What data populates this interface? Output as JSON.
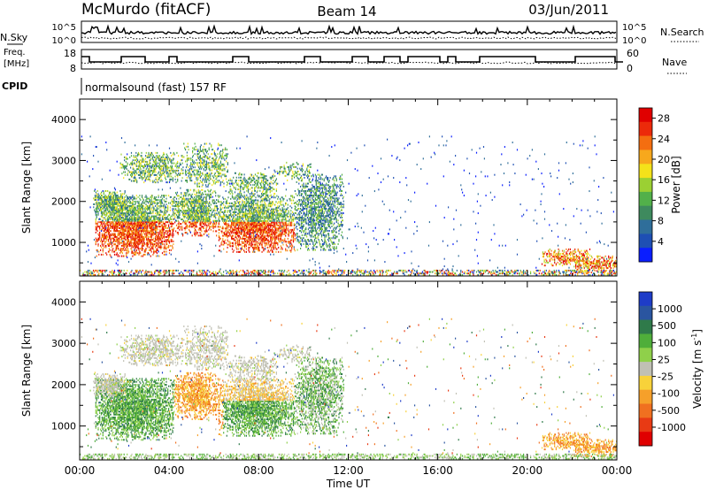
{
  "header": {
    "station": "McMurdo (fitACF)",
    "beam": "Beam 14",
    "date": "03/Jun/2011"
  },
  "top_panels": {
    "nsky_label": "N.Sky",
    "nsearch_label": "N.Search",
    "nsky_ticks": [
      "10^5",
      "10^0"
    ],
    "nsearch_ticks": [
      "10^5",
      "10^0"
    ],
    "freq_label_1": "Freq.",
    "freq_label_2": "[MHz]",
    "freq_ticks": [
      "18",
      "8"
    ],
    "nave_label": "Nave",
    "nave_ticks": [
      "60",
      "0"
    ],
    "cpid_label": "CPID",
    "cpid_text": "normalsound (fast) 157 RF"
  },
  "chart_data": [
    {
      "type": "heatmap",
      "name": "power",
      "ylabel": "Slant Range [km]",
      "xlabel": "",
      "ylim": [
        180,
        4500
      ],
      "xlim": [
        0,
        24
      ],
      "y_ticks": [
        "1000",
        "2000",
        "3000",
        "4000"
      ],
      "y_tick_values": [
        1000,
        2000,
        3000,
        4000
      ],
      "colorbar": {
        "label": "Power [dB]",
        "ticks": [
          "4",
          "8",
          "12",
          "16",
          "20",
          "24",
          "28"
        ],
        "colors": [
          "#0a1eff",
          "#1e4fb4",
          "#2f6e9a",
          "#3e8a5e",
          "#52b04a",
          "#9bd033",
          "#f4e21a",
          "#f7a81c",
          "#f46e10",
          "#ec2a0a",
          "#e00000"
        ]
      }
    },
    {
      "type": "heatmap",
      "name": "velocity",
      "ylabel": "Slant Range [km]",
      "xlabel": "Time UT",
      "ylim": [
        180,
        4500
      ],
      "xlim": [
        0,
        24
      ],
      "x_ticks": [
        "00:00",
        "04:00",
        "08:00",
        "12:00",
        "16:00",
        "20:00",
        "00:00"
      ],
      "x_tick_values": [
        0,
        4,
        8,
        12,
        16,
        20,
        24
      ],
      "y_ticks": [
        "1000",
        "2000",
        "3000",
        "4000"
      ],
      "y_tick_values": [
        1000,
        2000,
        3000,
        4000
      ],
      "colorbar": {
        "label": "Velocity [m s",
        "label_sup": "-1",
        "label_end": "]",
        "ticks": [
          "1000",
          "500",
          "100",
          "25",
          "-25",
          "-100",
          "-500",
          "-1000"
        ],
        "colors": [
          "#1e3cc8",
          "#2a55a0",
          "#2f7a4a",
          "#4fae3a",
          "#8fd04a",
          "#c0c0b4",
          "#f8d23a",
          "#f6a02a",
          "#f07020",
          "#e83a14",
          "#e00000"
        ]
      }
    }
  ]
}
